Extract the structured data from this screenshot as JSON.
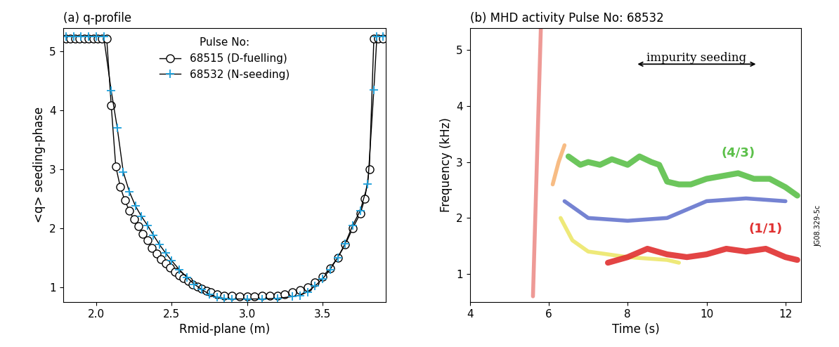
{
  "chart_data": [
    {
      "type": "line",
      "title": "(a) q-profile",
      "x_label": "Rmid-plane (m)",
      "y_label": "<q> seeding-phase",
      "xlim": [
        1.78,
        3.92
      ],
      "xticks": [
        {
          "value": 2.0,
          "label": "2.0"
        },
        2.5,
        {
          "value": 3.0,
          "label": "3.0"
        },
        3.5
      ],
      "ylim": [
        0.75,
        5.4
      ],
      "yticks": [
        1,
        2,
        3,
        4,
        5
      ],
      "legend": "upper center",
      "legend_title": "Pulse No:",
      "series": [
        {
          "name": "68515 (D-fuelling)",
          "color": "#000000",
          "marker": "o",
          "x": [
            1.8,
            1.83,
            1.86,
            1.89,
            1.92,
            1.95,
            1.98,
            2.01,
            2.04,
            2.07,
            2.1,
            2.13,
            2.16,
            2.19,
            2.22,
            2.25,
            2.28,
            2.31,
            2.34,
            2.37,
            2.4,
            2.43,
            2.46,
            2.49,
            2.52,
            2.55,
            2.58,
            2.61,
            2.64,
            2.67,
            2.7,
            2.73,
            2.76,
            2.8,
            2.85,
            2.9,
            2.95,
            3.0,
            3.05,
            3.1,
            3.15,
            3.2,
            3.25,
            3.3,
            3.35,
            3.4,
            3.45,
            3.5,
            3.55,
            3.6,
            3.65,
            3.7,
            3.75,
            3.78,
            3.81,
            3.84,
            3.87,
            3.9
          ],
          "values": [
            5.22,
            5.22,
            5.22,
            5.22,
            5.22,
            5.22,
            5.22,
            5.22,
            5.22,
            5.22,
            4.08,
            3.05,
            2.7,
            2.47,
            2.3,
            2.15,
            2.03,
            1.9,
            1.79,
            1.67,
            1.57,
            1.48,
            1.4,
            1.33,
            1.26,
            1.2,
            1.15,
            1.1,
            1.05,
            1.01,
            0.97,
            0.94,
            0.91,
            0.88,
            0.86,
            0.85,
            0.84,
            0.84,
            0.84,
            0.85,
            0.85,
            0.86,
            0.88,
            0.91,
            0.95,
            1.0,
            1.08,
            1.18,
            1.32,
            1.5,
            1.72,
            2.0,
            2.25,
            2.5,
            3.0,
            5.22,
            5.22,
            5.22
          ]
        },
        {
          "name": "68532 (N-seeding)",
          "color": "#1ca0dc",
          "marker": "+",
          "x": [
            1.8,
            1.85,
            1.9,
            1.95,
            2.0,
            2.05,
            2.1,
            2.14,
            2.18,
            2.22,
            2.26,
            2.3,
            2.34,
            2.38,
            2.42,
            2.46,
            2.5,
            2.55,
            2.6,
            2.65,
            2.7,
            2.75,
            2.8,
            2.85,
            2.9,
            3.0,
            3.1,
            3.2,
            3.3,
            3.35,
            3.4,
            3.45,
            3.5,
            3.55,
            3.6,
            3.65,
            3.7,
            3.75,
            3.8,
            3.84,
            3.86,
            3.9
          ],
          "values": [
            5.25,
            5.25,
            5.25,
            5.25,
            5.25,
            5.25,
            4.33,
            3.7,
            2.95,
            2.62,
            2.38,
            2.2,
            2.05,
            1.88,
            1.72,
            1.58,
            1.45,
            1.3,
            1.17,
            1.05,
            0.96,
            0.88,
            0.83,
            0.81,
            0.8,
            0.8,
            0.8,
            0.81,
            0.84,
            0.86,
            0.92,
            1.02,
            1.14,
            1.3,
            1.5,
            1.74,
            2.05,
            2.3,
            2.75,
            4.35,
            5.25,
            5.25
          ]
        }
      ]
    },
    {
      "type": "line",
      "title": "(b) MHD activity Pulse No: 68532",
      "x_label": "Time (s)",
      "y_label": "Frequency (kHz)",
      "xlim": [
        4,
        12.4
      ],
      "xticks": [
        4,
        6,
        8,
        10,
        12
      ],
      "ylim": [
        0.5,
        5.4
      ],
      "yticks": [
        1,
        2,
        3,
        4,
        5
      ],
      "annotations": [
        {
          "text": "impurity seeding",
          "x": [
            8.2,
            11.3
          ],
          "y": 4.75
        }
      ],
      "side_text": "JG08.329-5c",
      "series": [
        {
          "color": "#e8706a",
          "x": [
            5.6,
            5.7,
            5.8
          ],
          "values": [
            0.6,
            3.0,
            5.4
          ]
        },
        {
          "color": "#f5a050",
          "x": [
            6.1,
            6.25,
            6.4
          ],
          "values": [
            2.6,
            3.0,
            3.3
          ]
        },
        {
          "color": "#e8e040",
          "x": [
            6.3,
            6.6,
            7.0,
            8.0,
            9.0,
            9.3
          ],
          "values": [
            2.0,
            1.6,
            1.4,
            1.3,
            1.25,
            1.2
          ]
        },
        {
          "color": "#3a4fc0",
          "x": [
            6.4,
            7.0,
            8.0,
            9.0,
            10.0,
            11.0,
            12.0
          ],
          "values": [
            2.3,
            2.0,
            1.95,
            2.0,
            2.3,
            2.35,
            2.3
          ]
        },
        {
          "name": "(4/3)",
          "color": "#5cc04a",
          "x": [
            6.5,
            6.8,
            7.0,
            7.3,
            7.6,
            8.0,
            8.3,
            8.6,
            8.8,
            9.0,
            9.3,
            9.6,
            10.0,
            10.4,
            10.8,
            11.2,
            11.6,
            12.0,
            12.3
          ],
          "values": [
            3.1,
            2.95,
            3.0,
            2.95,
            3.05,
            2.95,
            3.1,
            3.0,
            2.95,
            2.65,
            2.6,
            2.6,
            2.7,
            2.75,
            2.8,
            2.7,
            2.7,
            2.55,
            2.4
          ]
        },
        {
          "name": "(1/1)",
          "color": "#e03030",
          "x": [
            7.5,
            8.0,
            8.5,
            9.0,
            9.5,
            10.0,
            10.5,
            11.0,
            11.5,
            12.0,
            12.3
          ],
          "values": [
            1.2,
            1.3,
            1.45,
            1.35,
            1.3,
            1.35,
            1.45,
            1.4,
            1.45,
            1.3,
            1.25
          ]
        }
      ]
    }
  ]
}
